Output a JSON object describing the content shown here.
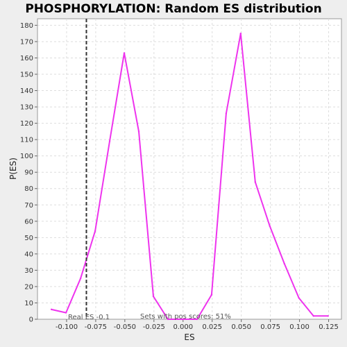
{
  "chart_data": {
    "type": "line",
    "title": "PHOSPHORYLATION: Random ES distribution",
    "xlabel": "ES",
    "ylabel": "P(ES)",
    "xlim": [
      -0.125,
      0.136
    ],
    "ylim": [
      0,
      184
    ],
    "xticks": [
      -0.1,
      -0.075,
      -0.05,
      -0.025,
      0.0,
      0.025,
      0.05,
      0.075,
      0.1,
      0.125
    ],
    "xtick_labels": [
      "-0.100",
      "-0.075",
      "-0.050",
      "-0.025",
      "0.000",
      "0.025",
      "0.050",
      "0.075",
      "0.100",
      "0.125"
    ],
    "yticks": [
      0,
      10,
      20,
      30,
      40,
      50,
      60,
      70,
      80,
      90,
      100,
      110,
      120,
      130,
      140,
      150,
      160,
      170,
      180
    ],
    "grid": true,
    "series": [
      {
        "name": "P(ES)",
        "color": "#ee33ee",
        "x": [
          -0.113,
          -0.1005,
          -0.088,
          -0.0755,
          -0.063,
          -0.0505,
          -0.038,
          -0.0255,
          -0.013,
          -0.0005,
          0.012,
          0.0245,
          0.037,
          0.0495,
          0.062,
          0.0745,
          0.087,
          0.0995,
          0.112,
          0.1245
        ],
        "y": [
          6,
          4,
          25,
          54,
          109,
          163,
          115,
          14,
          0,
          0,
          0,
          15,
          126,
          175,
          84,
          57,
          34,
          13,
          2,
          2
        ]
      }
    ],
    "real_es": -0.083,
    "real_es_color": "#333333",
    "annotations": {
      "real_es_label": "Real ES -0.1",
      "pos_scores_label": "Sets with pos scores: 51%"
    }
  }
}
